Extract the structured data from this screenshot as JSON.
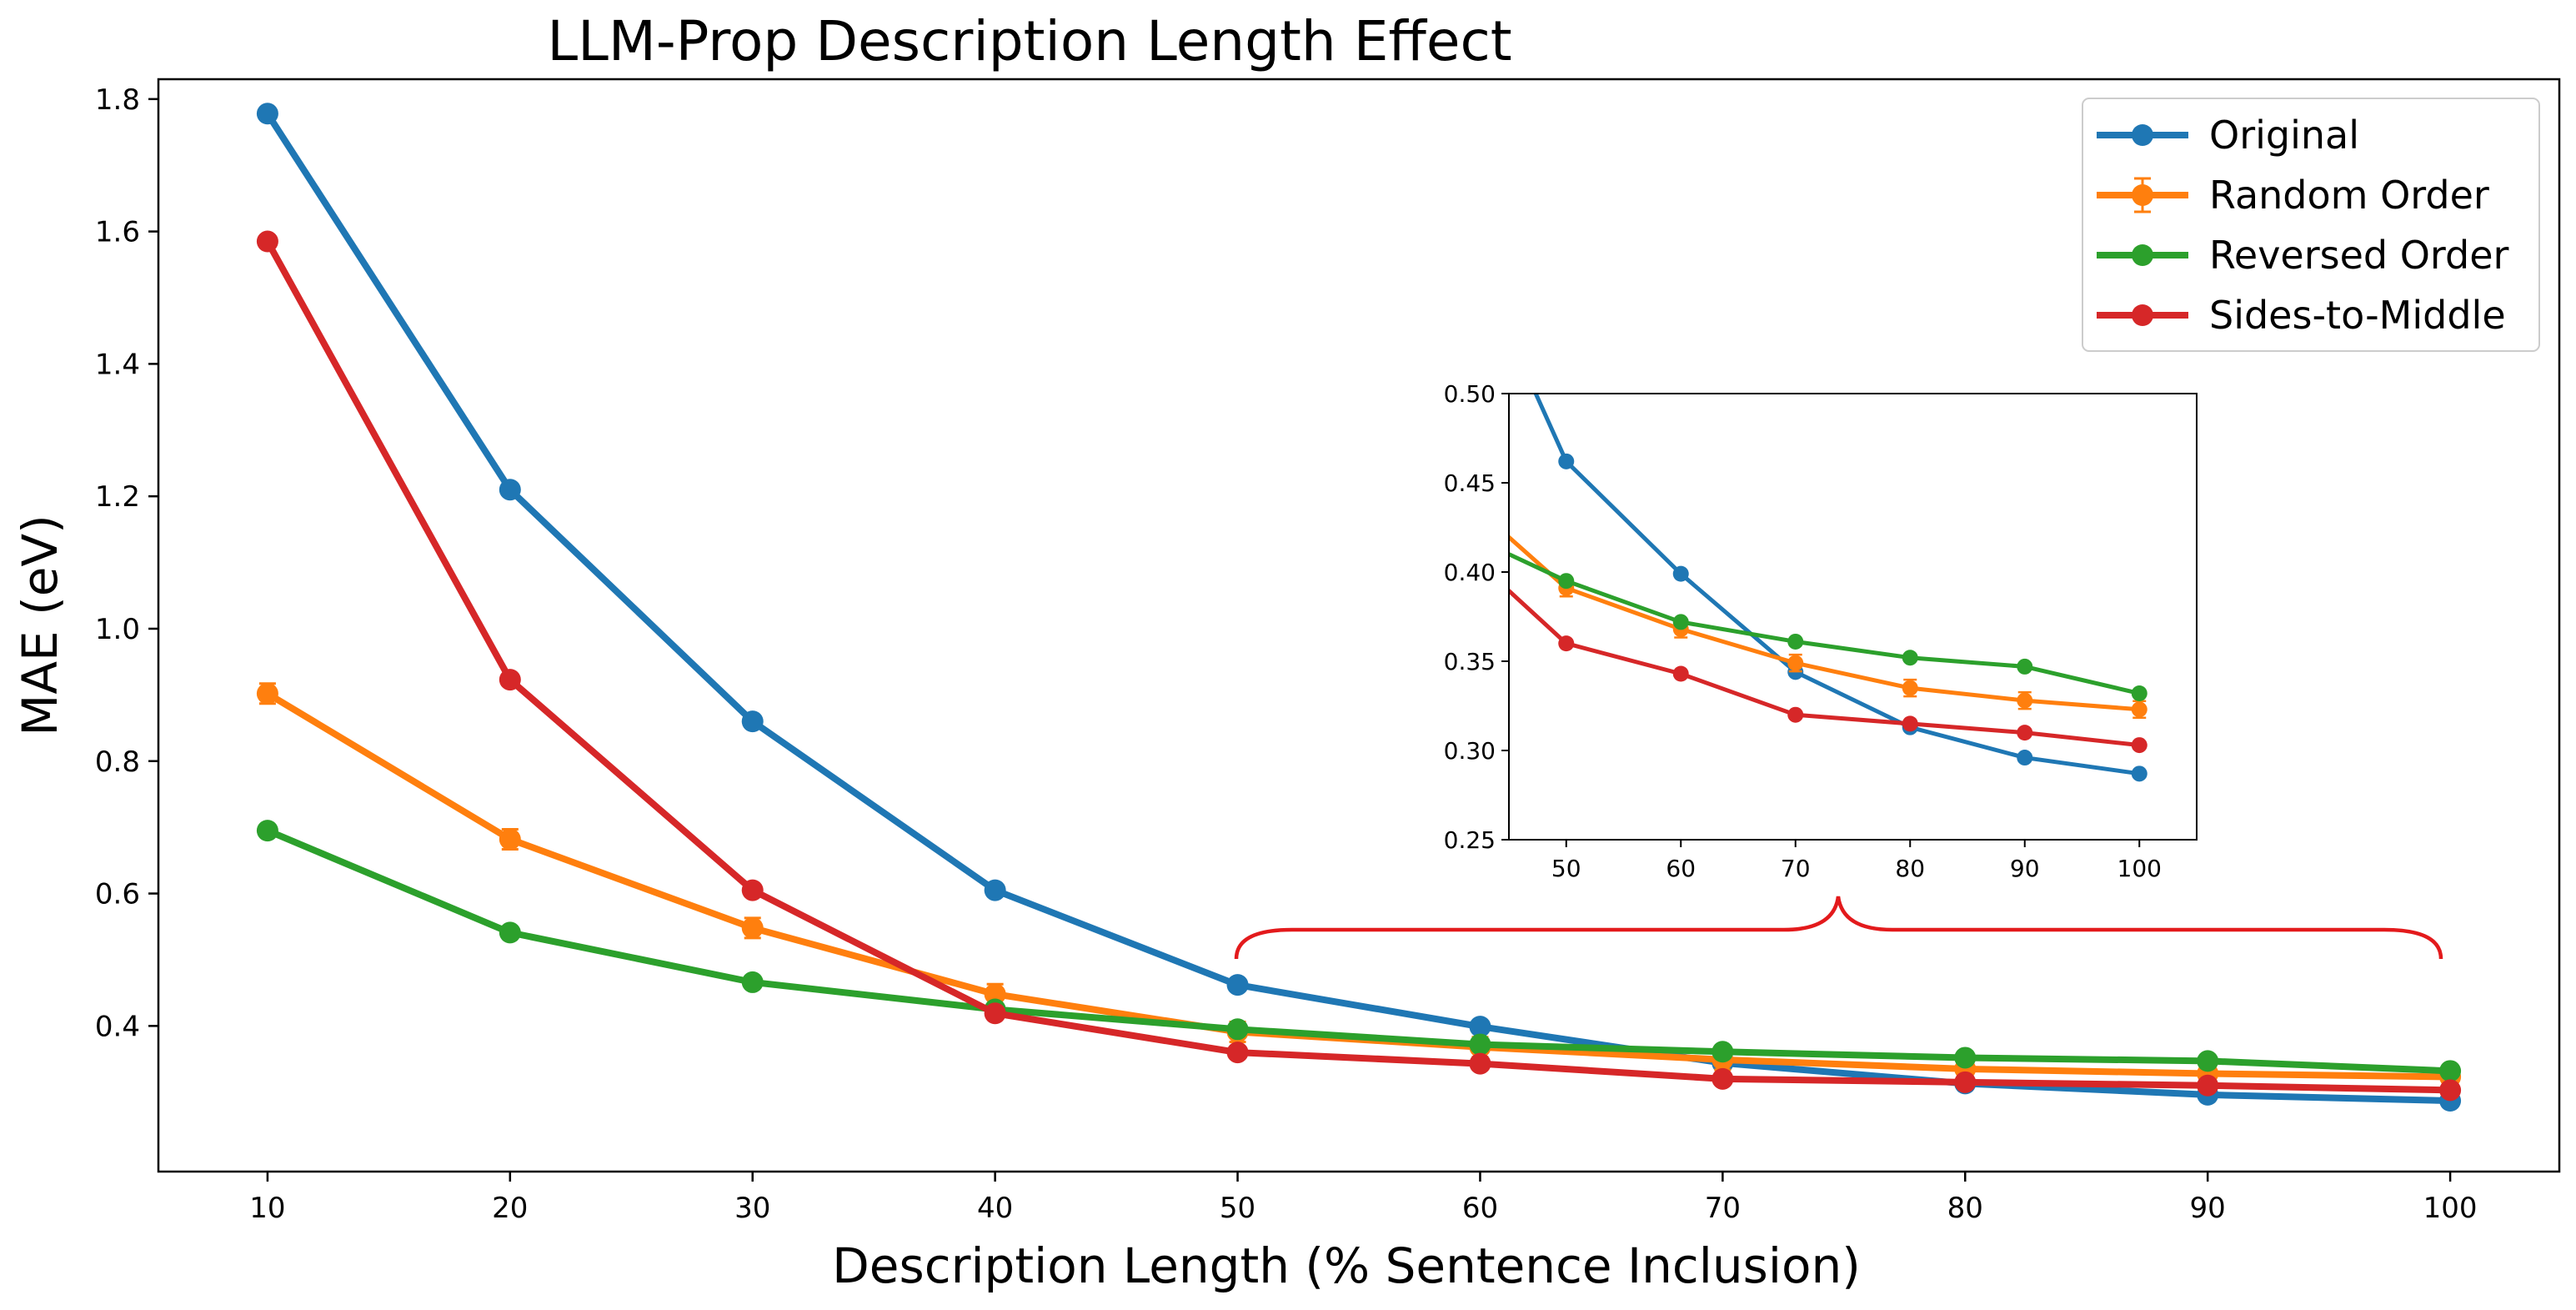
{
  "chart_data": {
    "type": "line",
    "title": "LLM-Prop Description Length Effect",
    "xlabel": "Description Length (% Sentence Inclusion)",
    "ylabel": "MAE (eV)",
    "x": [
      10,
      20,
      30,
      40,
      50,
      60,
      70,
      80,
      90,
      100
    ],
    "xlim": [
      5.5,
      104.5
    ],
    "ylim": [
      0.18,
      1.83
    ],
    "xticks": [
      "10",
      "20",
      "30",
      "40",
      "50",
      "60",
      "70",
      "80",
      "90",
      "100"
    ],
    "yticks": [
      "0.4",
      "0.6",
      "0.8",
      "1.0",
      "1.2",
      "1.4",
      "1.6",
      "1.8"
    ],
    "grid": false,
    "legend_position": "top-right",
    "series": [
      {
        "name": "Original",
        "color": "#1f77b4",
        "values": [
          1.778,
          1.21,
          0.86,
          0.605,
          0.462,
          0.399,
          0.344,
          0.313,
          0.296,
          0.287
        ]
      },
      {
        "name": "Random Order",
        "color": "#ff7f0e",
        "error_bars": true,
        "values": [
          0.902,
          0.682,
          0.548,
          0.448,
          0.391,
          0.368,
          0.349,
          0.335,
          0.328,
          0.323
        ]
      },
      {
        "name": "Reversed Order",
        "color": "#2ca02c",
        "values": [
          0.695,
          0.541,
          0.466,
          0.425,
          0.395,
          0.372,
          0.361,
          0.352,
          0.347,
          0.332
        ]
      },
      {
        "name": "Sides-to-Middle",
        "color": "#d62728",
        "values": [
          1.585,
          0.923,
          0.605,
          0.419,
          0.36,
          0.343,
          0.32,
          0.315,
          0.31,
          0.303
        ]
      }
    ],
    "inset": {
      "xlim": [
        45,
        105
      ],
      "ylim": [
        0.25,
        0.5
      ],
      "xticks": [
        "50",
        "60",
        "70",
        "80",
        "90",
        "100"
      ],
      "yticks": [
        "0.25",
        "0.30",
        "0.35",
        "0.40",
        "0.45",
        "0.50"
      ],
      "brace_color": "#e31a1c"
    }
  }
}
